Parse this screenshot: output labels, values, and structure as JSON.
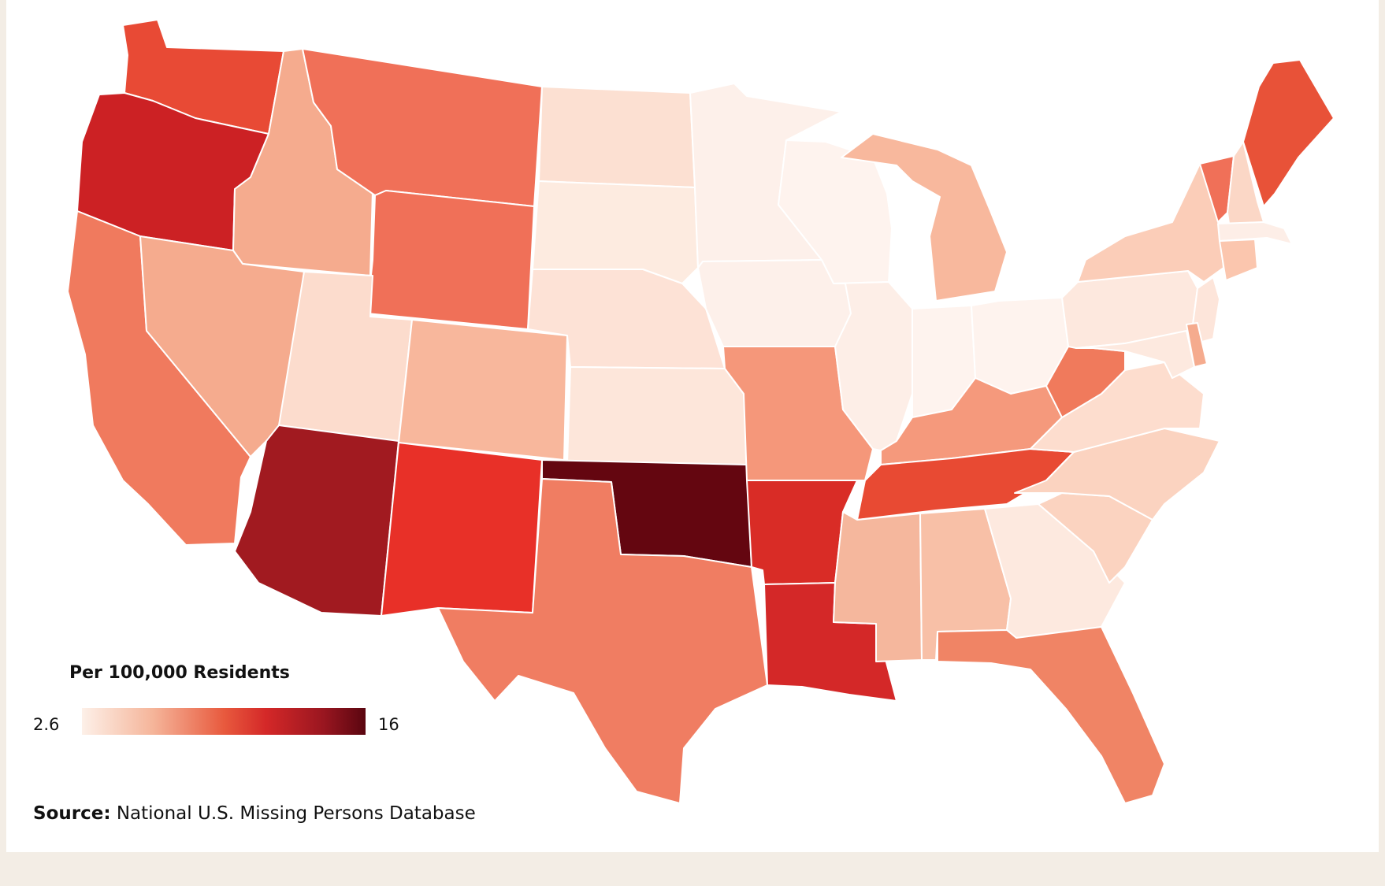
{
  "legend": {
    "title": "Per 100,000 Residents",
    "min_label": "2.6",
    "max_label": "16",
    "min": 2.6,
    "max": 16
  },
  "source": {
    "label": "Source:",
    "text": "National U.S. Missing Persons Database"
  },
  "colors": {
    "lowest": "#fdf0e8",
    "low": "#f5b59a",
    "mid": "#e85a3e",
    "high": "#d42828",
    "higher": "#9a1620",
    "highest": "#5a0610",
    "page_background": "#f3ede5"
  },
  "states": [
    {
      "id": "WA",
      "color": "#e84a35"
    },
    {
      "id": "OR",
      "color": "#cc2124"
    },
    {
      "id": "CA",
      "color": "#f07a5e"
    },
    {
      "id": "ID",
      "color": "#f5ab8e"
    },
    {
      "id": "NV",
      "color": "#f5ab8e"
    },
    {
      "id": "MT",
      "color": "#f07058"
    },
    {
      "id": "WY",
      "color": "#f07058"
    },
    {
      "id": "UT",
      "color": "#fcdccd"
    },
    {
      "id": "AZ",
      "color": "#a11a20"
    },
    {
      "id": "CO",
      "color": "#f8b79c"
    },
    {
      "id": "NM",
      "color": "#e83028"
    },
    {
      "id": "ND",
      "color": "#fce0d2"
    },
    {
      "id": "SD",
      "color": "#fdebe0"
    },
    {
      "id": "NE",
      "color": "#fde2d6"
    },
    {
      "id": "KS",
      "color": "#fde6da"
    },
    {
      "id": "OK",
      "color": "#640610"
    },
    {
      "id": "TX",
      "color": "#f07d62"
    },
    {
      "id": "MN",
      "color": "#fdf0ea"
    },
    {
      "id": "IA",
      "color": "#fdf0ea"
    },
    {
      "id": "MO",
      "color": "#f5977a"
    },
    {
      "id": "AR",
      "color": "#d92c26"
    },
    {
      "id": "LA",
      "color": "#d42828"
    },
    {
      "id": "WI",
      "color": "#fef3ee"
    },
    {
      "id": "IL",
      "color": "#fdeee7"
    },
    {
      "id": "MI",
      "color": "#f8b89d"
    },
    {
      "id": "IN",
      "color": "#fef3ee"
    },
    {
      "id": "OH",
      "color": "#fef3ee"
    },
    {
      "id": "KY",
      "color": "#f5997c"
    },
    {
      "id": "TN",
      "color": "#e84a33"
    },
    {
      "id": "MS",
      "color": "#f5b79d"
    },
    {
      "id": "AL",
      "color": "#f8c0a7"
    },
    {
      "id": "GA",
      "color": "#fde9df"
    },
    {
      "id": "FL",
      "color": "#f08465"
    },
    {
      "id": "SC",
      "color": "#fbd3c0"
    },
    {
      "id": "NC",
      "color": "#fbd3c0"
    },
    {
      "id": "VA",
      "color": "#fdddce"
    },
    {
      "id": "WV",
      "color": "#f07a5c"
    },
    {
      "id": "PA",
      "color": "#fde8de"
    },
    {
      "id": "NY",
      "color": "#fbcdb8"
    },
    {
      "id": "VT",
      "color": "#f07058"
    },
    {
      "id": "NH",
      "color": "#fbd7c6"
    },
    {
      "id": "ME",
      "color": "#e85238"
    },
    {
      "id": "MA",
      "color": "#fdeee7"
    },
    {
      "id": "CT",
      "color": "#fbc6ae"
    },
    {
      "id": "NJ",
      "color": "#fde5da"
    },
    {
      "id": "MD",
      "color": "#fde9df"
    },
    {
      "id": "DE",
      "color": "#f5ab8e"
    }
  ]
}
